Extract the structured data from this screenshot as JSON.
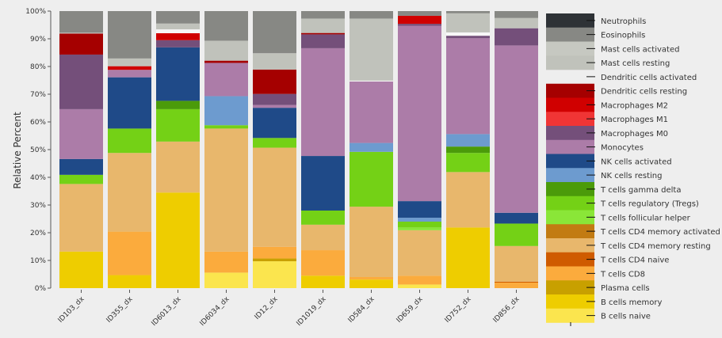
{
  "chart_data": {
    "type": "bar",
    "stacked": true,
    "title": "",
    "xlabel": "",
    "ylabel": "Relative Percent",
    "ylim": [
      0,
      100
    ],
    "yticks": [
      "0%",
      "10%",
      "20%",
      "30%",
      "40%",
      "50%",
      "60%",
      "70%",
      "80%",
      "90%",
      "100%"
    ],
    "legend_position": "right",
    "categories": [
      "ID103_dx",
      "ID355_dx",
      "ID6013_dx",
      "ID6034_dx",
      "ID12_dx",
      "ID1019_dx",
      "ID584_dx",
      "ID659_dx",
      "ID752_dx",
      "ID856_dx"
    ],
    "series": [
      {
        "name": "B cells naive",
        "color": "#fbe54e",
        "values": [
          0,
          0,
          0,
          5.6,
          9.7,
          0,
          0,
          1.3,
          0,
          0
        ]
      },
      {
        "name": "B cells memory",
        "color": "#eecd00",
        "values": [
          13.2,
          4.7,
          34.5,
          0,
          0,
          4.5,
          3.1,
          0,
          21.9,
          0
        ]
      },
      {
        "name": "Plasma cells",
        "color": "#c8a000",
        "values": [
          0,
          0,
          0,
          0,
          1.0,
          0,
          0,
          0,
          0,
          0
        ]
      },
      {
        "name": "T cells CD8",
        "color": "#fbab3d",
        "values": [
          0,
          15.7,
          0,
          7.6,
          4.2,
          9.2,
          0.9,
          3.2,
          0,
          2.0
        ]
      },
      {
        "name": "T cells CD4 naive",
        "color": "#cf5b00",
        "values": [
          0,
          0,
          0,
          0,
          0,
          0,
          0,
          0,
          0,
          0.3
        ]
      },
      {
        "name": "T cells CD4 memory resting",
        "color": "#e8b76c",
        "values": [
          24.4,
          28.4,
          18.4,
          44.4,
          35.8,
          9.2,
          25.4,
          16.4,
          20.0,
          12.9
        ]
      },
      {
        "name": "T cells CD4 memory activated",
        "color": "#c27b12",
        "values": [
          0,
          0,
          0,
          0,
          0,
          0,
          0,
          0,
          0,
          0
        ]
      },
      {
        "name": "T cells follicular helper",
        "color": "#8ae638",
        "values": [
          0,
          0,
          0,
          0,
          0,
          0,
          0,
          1.0,
          0,
          0
        ]
      },
      {
        "name": "T cells regulatory (Tregs)",
        "color": "#74d116",
        "values": [
          3.3,
          8.8,
          11.7,
          1.2,
          3.5,
          5.1,
          19.8,
          2.1,
          6.9,
          8.1
        ]
      },
      {
        "name": "T cells gamma delta",
        "color": "#4b9b0a",
        "values": [
          0,
          0,
          3.0,
          0,
          0,
          0,
          0,
          0,
          2.3,
          0
        ]
      },
      {
        "name": "NK cells resting",
        "color": "#6d9bcf",
        "values": [
          0,
          0,
          0,
          10.5,
          0,
          0,
          3.2,
          1.4,
          4.5,
          0
        ]
      },
      {
        "name": "NK cells activated",
        "color": "#1f4a88",
        "values": [
          5.7,
          18.5,
          19.3,
          0,
          10.9,
          19.7,
          0,
          6.0,
          0,
          3.9
        ]
      },
      {
        "name": "Monocytes",
        "color": "#ac7ca8",
        "values": [
          18.0,
          2.7,
          0,
          12.0,
          1.0,
          38.9,
          22.2,
          63.3,
          34.6,
          60.4
        ]
      },
      {
        "name": "Macrophages M0",
        "color": "#744f7a",
        "values": [
          19.7,
          0,
          2.6,
          0,
          4.0,
          5.0,
          0,
          0.7,
          0.9,
          6.2
        ]
      },
      {
        "name": "Macrophages M1",
        "color": "#f03535",
        "values": [
          0,
          0,
          0,
          0,
          0,
          0,
          0,
          0,
          0,
          0
        ]
      },
      {
        "name": "Macrophages M2",
        "color": "#d00000",
        "values": [
          0,
          1.3,
          2.5,
          0,
          0,
          0,
          0,
          2.9,
          0,
          0
        ]
      },
      {
        "name": "Dendritic cells resting",
        "color": "#a50000",
        "values": [
          7.6,
          0,
          0,
          0.8,
          8.8,
          0.5,
          0,
          0,
          0,
          0
        ]
      },
      {
        "name": "Dendritic cells activated",
        "color": "#f7f7f7",
        "values": [
          0,
          0,
          1.4,
          0,
          0,
          0,
          0.3,
          0,
          1.2,
          0
        ]
      },
      {
        "name": "Mast cells resting",
        "color": "#c0c2bb",
        "values": [
          0.3,
          2.8,
          2.1,
          7.2,
          5.9,
          5.2,
          22.4,
          0,
          6.9,
          3.7
        ]
      },
      {
        "name": "Mast cells activated",
        "color": "#c6c8c1",
        "values": [
          0,
          0,
          0,
          0,
          0,
          0,
          0,
          0,
          0,
          0
        ]
      },
      {
        "name": "Eosinophils",
        "color": "#878884",
        "values": [
          7.8,
          17.1,
          4.5,
          10.7,
          15.2,
          2.7,
          2.7,
          1.7,
          0.8,
          2.5
        ]
      },
      {
        "name": "Neutrophils",
        "color": "#2e3236",
        "values": [
          0,
          0,
          0,
          0,
          0,
          0,
          0,
          0,
          0,
          0
        ]
      }
    ]
  }
}
